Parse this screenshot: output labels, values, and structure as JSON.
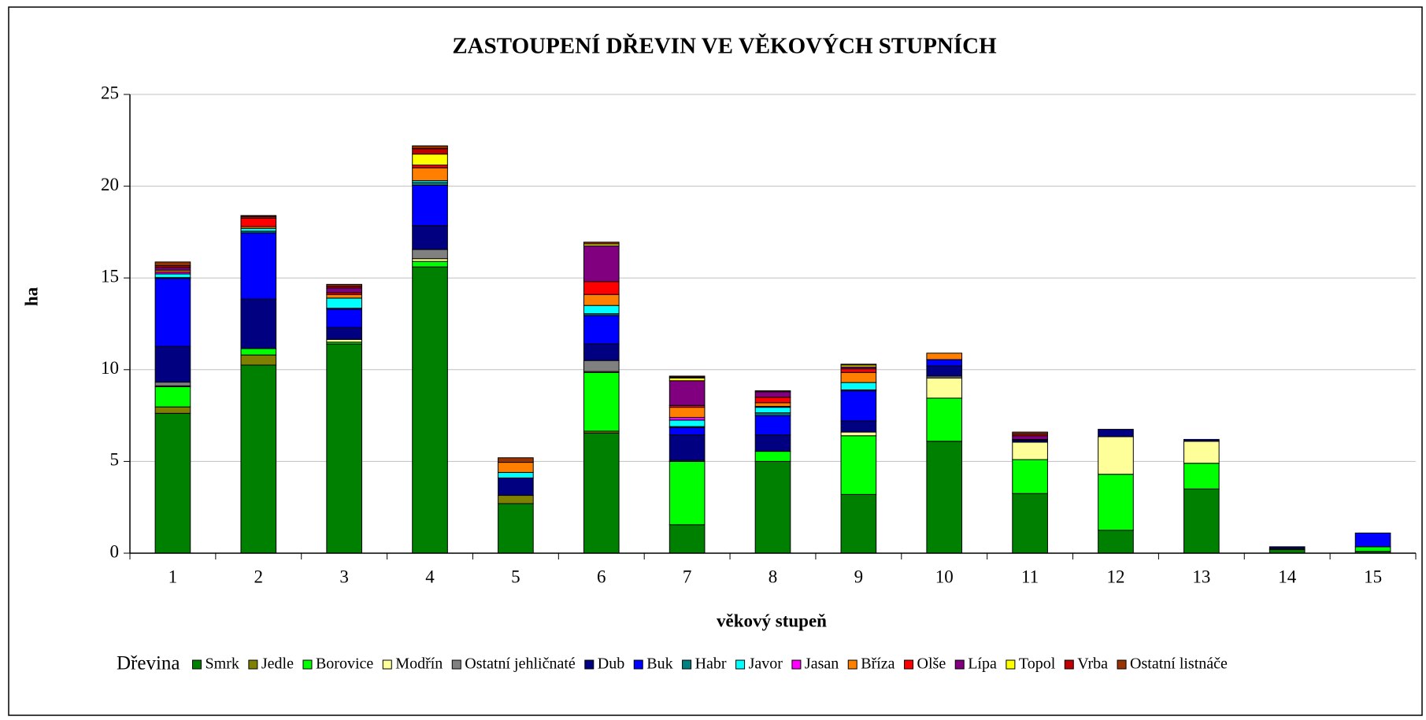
{
  "chart_data": {
    "type": "bar",
    "stacked": true,
    "title": "ZASTOUPENÍ DŘEVIN VE VĚKOVÝCH STUPNÍCH",
    "x_label": "věkový stupeň",
    "y_label": "ha",
    "legend_title": "Dřevina",
    "categories": [
      "1",
      "2",
      "3",
      "4",
      "5",
      "6",
      "7",
      "8",
      "9",
      "10",
      "11",
      "12",
      "13",
      "14",
      "15"
    ],
    "ylim": [
      0,
      25
    ],
    "yticks": [
      0,
      5,
      10,
      15,
      20,
      25
    ],
    "grid": true,
    "legend": "bottom",
    "series": [
      {
        "name": "Smrk",
        "color": "#008000",
        "values": [
          7.62,
          10.25,
          11.4,
          15.6,
          2.7,
          6.55,
          1.55,
          5.0,
          3.2,
          6.1,
          3.25,
          1.25,
          3.5,
          0.2,
          0.1
        ]
      },
      {
        "name": "Jedle",
        "color": "#808000",
        "values": [
          0.35,
          0.55,
          0,
          0,
          0.45,
          0.1,
          0,
          0,
          0,
          0,
          0,
          0,
          0,
          0.05,
          0
        ]
      },
      {
        "name": "Borovice",
        "color": "#00ff00",
        "values": [
          1.1,
          0.35,
          0.1,
          0.3,
          0,
          3.2,
          3.45,
          0.55,
          3.2,
          2.35,
          1.85,
          3.05,
          1.4,
          0,
          0.25
        ]
      },
      {
        "name": "Modřín",
        "color": "#ffff99",
        "values": [
          0.05,
          0,
          0.15,
          0.15,
          0,
          0.05,
          0.05,
          0,
          0.2,
          1.1,
          0.95,
          2.05,
          1.2,
          0,
          0
        ]
      },
      {
        "name": "Ostatní jehličnaté",
        "color": "#808080",
        "values": [
          0.2,
          0,
          0,
          0.5,
          0,
          0.6,
          0,
          0,
          0,
          0.1,
          0,
          0,
          0,
          0,
          0
        ]
      },
      {
        "name": "Dub",
        "color": "#000080",
        "values": [
          1.95,
          2.7,
          0.65,
          1.3,
          0.95,
          0.9,
          1.4,
          0.9,
          0.6,
          0.55,
          0.1,
          0.4,
          0.1,
          0.1,
          0
        ]
      },
      {
        "name": "Buk",
        "color": "#0000ff",
        "values": [
          3.7,
          3.6,
          1.0,
          2.2,
          0,
          1.55,
          0.4,
          1.05,
          1.65,
          0.35,
          0.05,
          0,
          0,
          0,
          0.75
        ]
      },
      {
        "name": "Habr",
        "color": "#008080",
        "values": [
          0.05,
          0.1,
          0.05,
          0.15,
          0,
          0.1,
          0.05,
          0.15,
          0.05,
          0,
          0,
          0,
          0,
          0,
          0
        ]
      },
      {
        "name": "Javor",
        "color": "#00ffff",
        "values": [
          0.2,
          0.15,
          0.55,
          0.1,
          0.3,
          0.45,
          0.35,
          0.3,
          0.4,
          0,
          0,
          0,
          0,
          0,
          0
        ]
      },
      {
        "name": "Jasan",
        "color": "#ff00ff",
        "values": [
          0.1,
          0,
          0,
          0,
          0,
          0,
          0.15,
          0.05,
          0,
          0,
          0,
          0,
          0,
          0,
          0
        ]
      },
      {
        "name": "Bříza",
        "color": "#ff8000",
        "values": [
          0.1,
          0.1,
          0.2,
          0.7,
          0.55,
          0.6,
          0.55,
          0.2,
          0.55,
          0.35,
          0,
          0,
          0,
          0,
          0
        ]
      },
      {
        "name": "Olše",
        "color": "#ff0000",
        "values": [
          0,
          0.45,
          0.1,
          0.15,
          0,
          0.7,
          0.1,
          0.3,
          0.2,
          0,
          0,
          0,
          0,
          0,
          0
        ]
      },
      {
        "name": "Lípa",
        "color": "#800080",
        "values": [
          0.15,
          0,
          0.25,
          0,
          0,
          1.95,
          1.35,
          0.3,
          0.1,
          0,
          0.2,
          0,
          0,
          0,
          0
        ]
      },
      {
        "name": "Topol",
        "color": "#ffff00",
        "values": [
          0,
          0,
          0,
          0.6,
          0,
          0.1,
          0.15,
          0,
          0.1,
          0,
          0,
          0,
          0,
          0,
          0
        ]
      },
      {
        "name": "Vrba",
        "color": "#c00000",
        "values": [
          0.1,
          0.1,
          0.1,
          0.3,
          0,
          0,
          0.05,
          0,
          0,
          0,
          0.1,
          0,
          0,
          0,
          0
        ]
      },
      {
        "name": "Ostatní listnáče",
        "color": "#993300",
        "values": [
          0.2,
          0.05,
          0.1,
          0.15,
          0.25,
          0.1,
          0.05,
          0.05,
          0.05,
          0,
          0.1,
          0,
          0,
          0,
          0
        ]
      }
    ]
  }
}
